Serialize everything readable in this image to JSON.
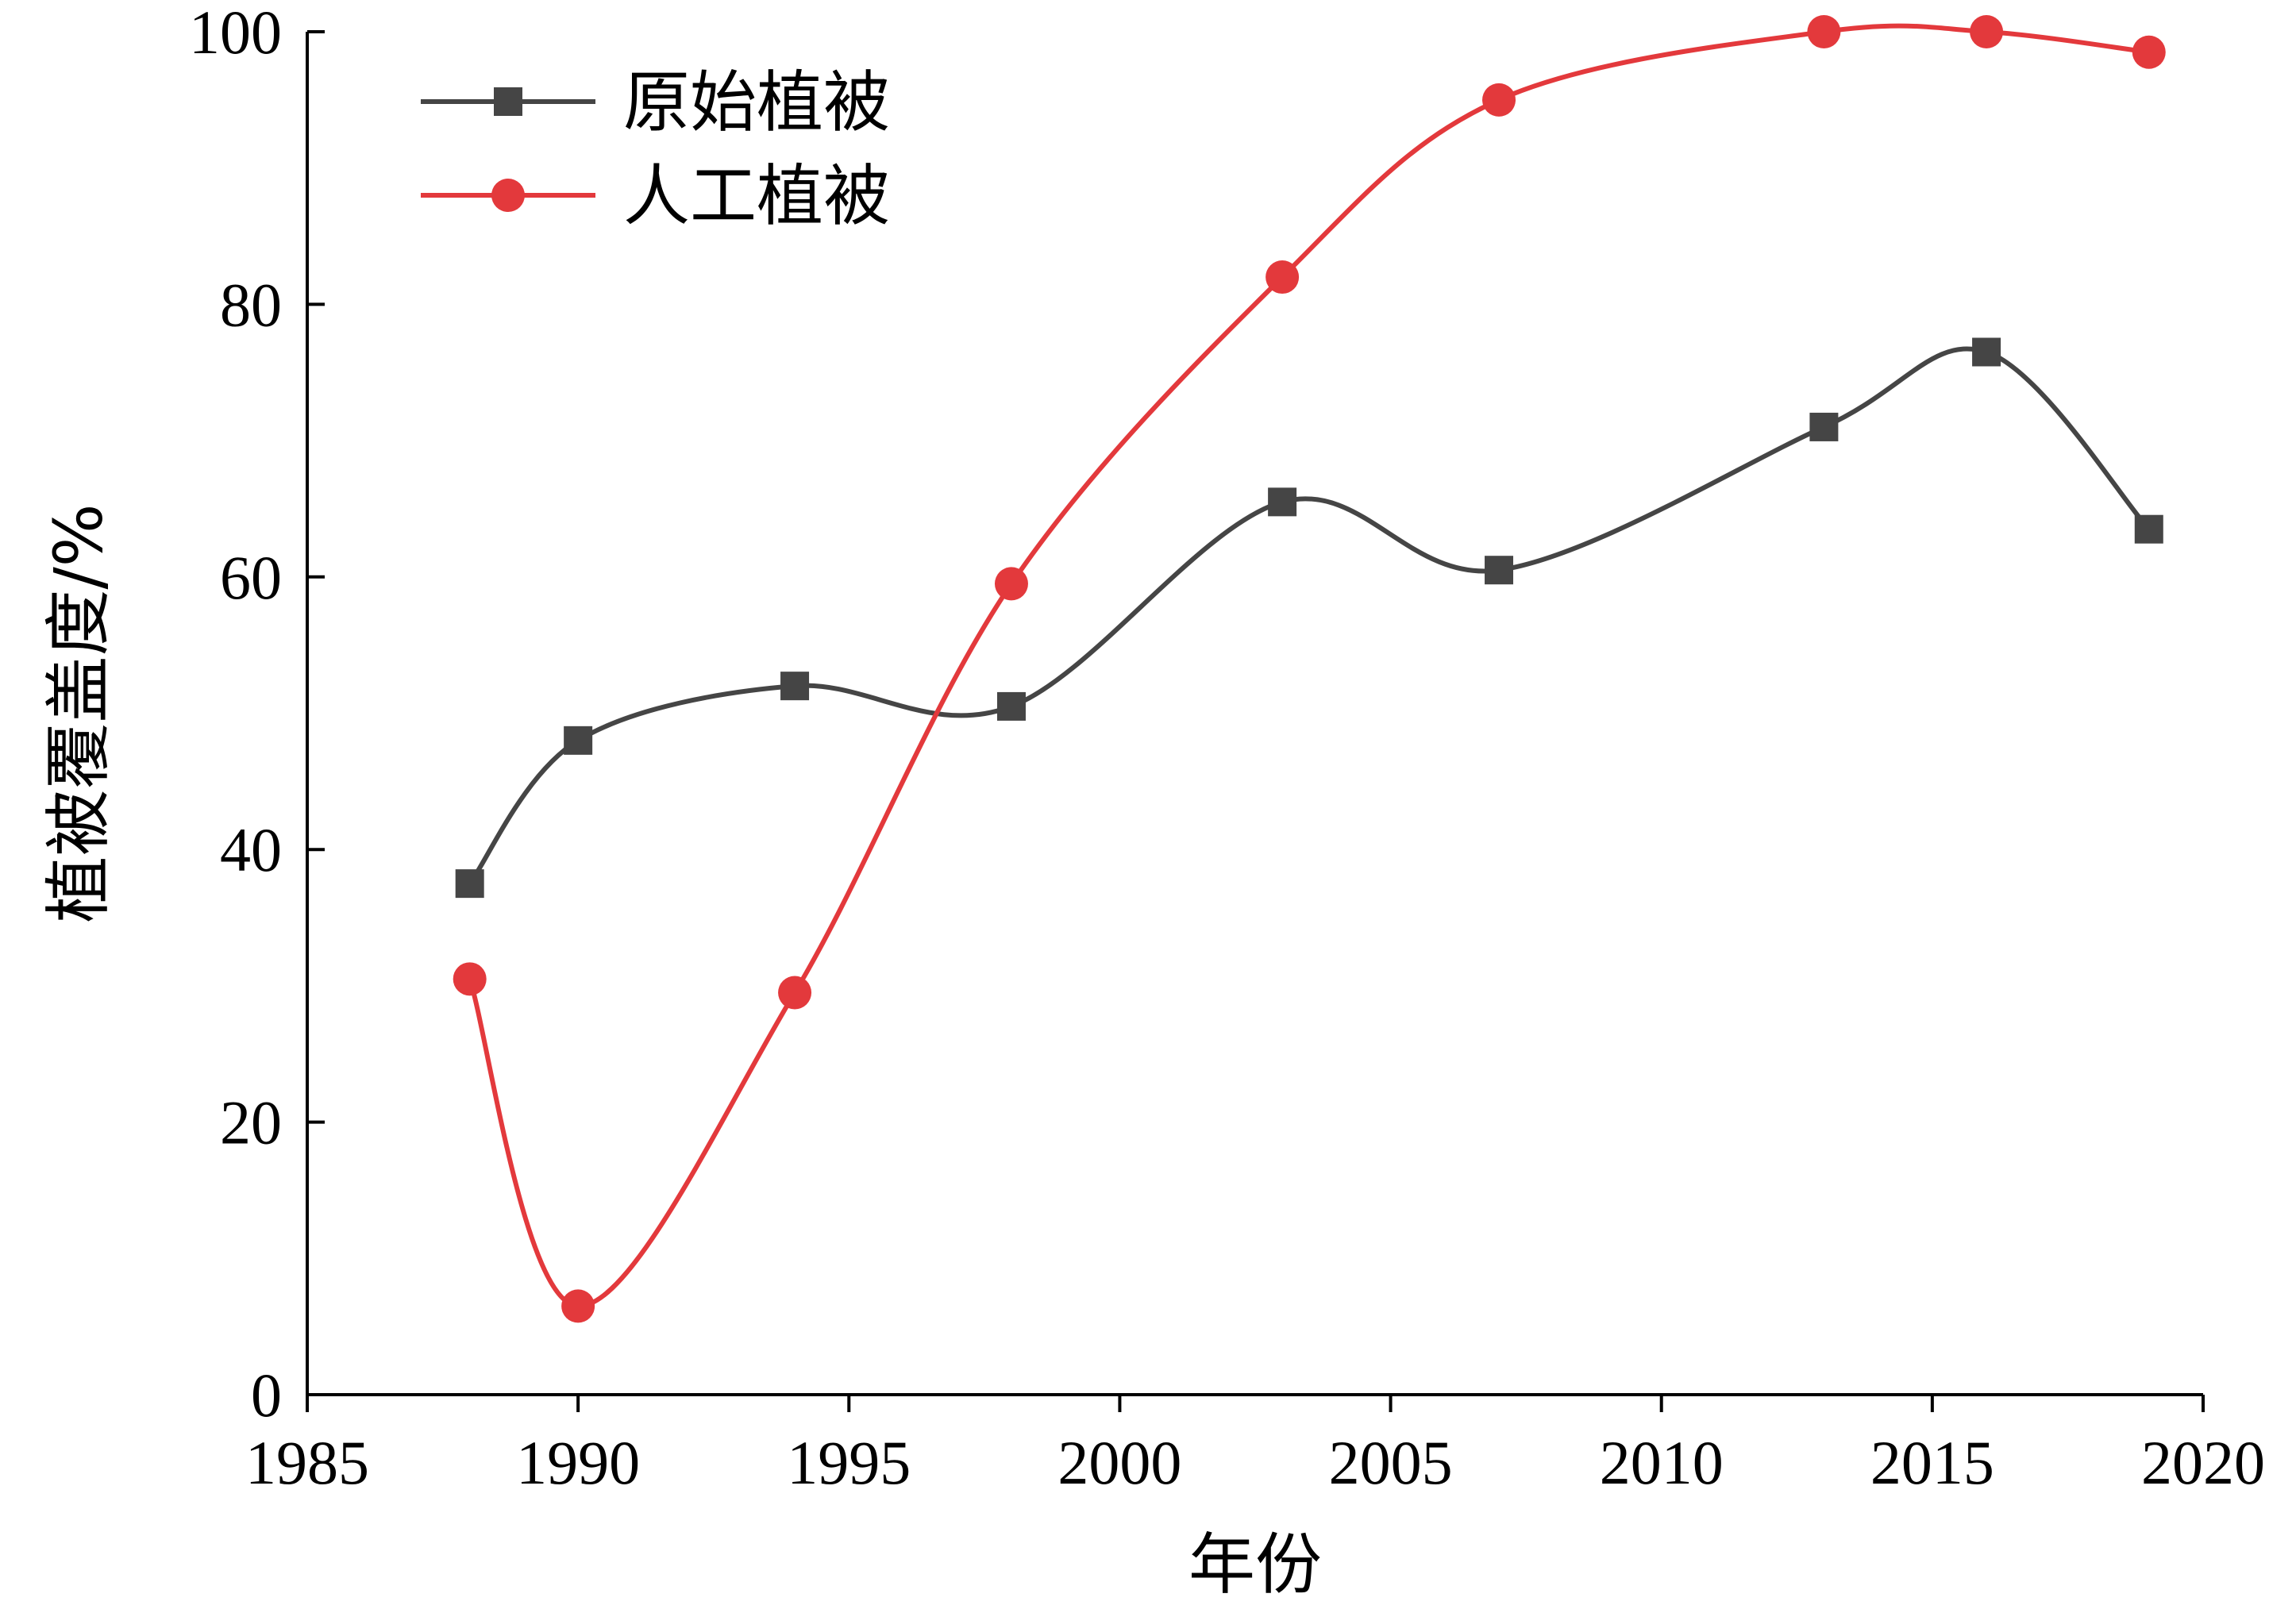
{
  "chart_data": {
    "type": "line",
    "title": "",
    "xlabel": "年份",
    "ylabel": "植被覆盖度/%",
    "xlim": [
      1985,
      2020
    ],
    "ylim": [
      0,
      100
    ],
    "x_ticks": [
      1985,
      1990,
      1995,
      2000,
      2005,
      2010,
      2015,
      2020
    ],
    "y_ticks": [
      0,
      20,
      40,
      60,
      80,
      100
    ],
    "x_tick_labels": [
      "1985",
      "1990",
      "1995",
      "2000",
      "2005",
      "2010",
      "2015",
      "2020"
    ],
    "y_tick_labels": [
      "0",
      "20",
      "40",
      "60",
      "80",
      "100"
    ],
    "grid": false,
    "legend_position": "top-left",
    "series": [
      {
        "name": "原始植被",
        "color": "#454545",
        "marker": "square",
        "x": [
          1988,
          1990,
          1994,
          1998,
          2003,
          2007,
          2013,
          2016,
          2019
        ],
        "y": [
          37.5,
          48,
          52,
          50.5,
          65.5,
          60.5,
          71,
          76.5,
          63.5
        ]
      },
      {
        "name": "人工植被",
        "color": "#e3393c",
        "marker": "circle",
        "x": [
          1988,
          1990,
          1994,
          1998,
          2003,
          2007,
          2013,
          2016,
          2019
        ],
        "y": [
          30.5,
          6.5,
          29.5,
          59.5,
          82,
          95,
          100,
          100,
          98.5
        ]
      }
    ]
  }
}
